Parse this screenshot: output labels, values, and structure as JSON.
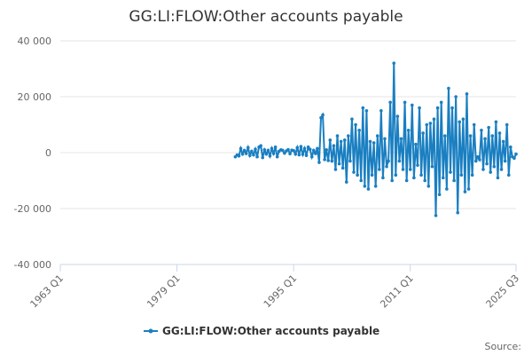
{
  "chart_data": {
    "type": "line",
    "title": "GG:LI:FLOW:Other accounts payable",
    "categories": [
      "1963 Q1",
      null,
      null,
      null,
      null,
      null,
      null,
      null,
      null,
      null,
      null,
      null,
      null,
      null,
      null,
      null,
      null,
      null,
      null,
      null,
      null,
      null,
      null,
      null,
      null,
      null,
      null,
      null,
      null,
      null,
      null,
      null,
      null,
      null,
      null,
      null,
      null,
      null,
      null,
      null,
      null,
      null,
      null,
      null,
      null,
      null,
      null,
      null,
      null,
      null,
      null,
      null,
      null,
      null,
      null,
      null,
      null,
      null,
      null,
      null,
      null,
      null,
      null,
      null,
      "1979 Q1",
      null,
      null,
      null,
      null,
      null,
      null,
      null,
      null,
      null,
      null,
      null,
      null,
      null,
      null,
      null,
      null,
      null,
      null,
      null,
      null,
      null,
      null,
      null,
      null,
      null,
      null,
      null,
      null,
      null,
      null,
      null,
      null,
      null,
      null,
      null,
      null,
      null,
      null,
      null,
      null,
      null,
      null,
      null,
      null,
      null,
      null,
      null,
      null,
      null,
      null,
      null,
      null,
      null,
      null,
      null,
      null,
      null,
      null,
      null,
      null,
      null,
      null,
      null,
      "1995 Q1",
      null,
      null,
      null,
      null,
      null,
      null,
      null,
      null,
      null,
      null,
      null,
      null,
      null,
      null,
      null,
      null,
      null,
      null,
      null,
      null,
      null,
      null,
      null,
      null,
      null,
      null,
      null,
      null,
      null,
      null,
      null,
      null,
      null,
      null,
      null,
      null,
      null,
      null,
      null,
      null,
      null,
      null,
      null,
      null,
      null,
      null,
      null,
      null,
      null,
      null,
      null,
      null,
      null,
      null,
      null,
      null,
      null,
      null,
      null,
      null,
      null,
      null,
      null,
      "2011 Q1",
      null,
      null,
      null,
      null,
      null,
      null,
      null,
      null,
      null,
      null,
      null,
      null,
      null,
      null,
      null,
      null,
      null,
      null,
      null,
      null,
      null,
      null,
      null,
      null,
      null,
      null,
      null,
      null,
      null,
      null,
      null,
      null,
      null,
      null,
      null,
      null,
      null,
      null,
      null,
      null,
      null,
      null,
      null,
      null,
      null,
      null,
      null,
      null,
      null,
      null,
      null,
      null,
      null,
      null,
      null,
      null,
      null,
      "2025 Q3"
    ],
    "series": [
      {
        "name": "GG:LI:FLOW:Other accounts payable",
        "color": "#1a7fc1",
        "values": [
          null,
          null,
          null,
          null,
          null,
          null,
          null,
          null,
          null,
          null,
          null,
          null,
          null,
          null,
          null,
          null,
          null,
          null,
          null,
          null,
          null,
          null,
          null,
          null,
          null,
          null,
          null,
          null,
          null,
          null,
          null,
          null,
          null,
          null,
          null,
          null,
          null,
          null,
          null,
          null,
          null,
          null,
          null,
          null,
          null,
          null,
          null,
          null,
          null,
          null,
          null,
          null,
          null,
          null,
          null,
          null,
          null,
          null,
          null,
          null,
          null,
          null,
          null,
          null,
          null,
          null,
          null,
          null,
          null,
          null,
          null,
          null,
          null,
          null,
          null,
          null,
          null,
          null,
          null,
          null,
          null,
          null,
          null,
          null,
          null,
          null,
          null,
          null,
          null,
          null,
          null,
          null,
          null,
          null,
          null,
          null,
          -1500,
          -800,
          -1200,
          1500,
          -500,
          800,
          -300,
          1800,
          -1000,
          500,
          -800,
          1200,
          -1500,
          2000,
          2500,
          -1800,
          1000,
          -500,
          800,
          -1200,
          1500,
          -300,
          2000,
          -1500,
          500,
          1000,
          800,
          -200,
          600,
          1100,
          -400,
          900,
          700,
          -500,
          1800,
          -800,
          2200,
          -600,
          1500,
          -1000,
          2000,
          1200,
          -1500,
          800,
          -300,
          1500,
          -3500,
          12500,
          13500,
          -2500,
          1000,
          -2800,
          4500,
          -3000,
          2500,
          -6000,
          6000,
          -4000,
          4000,
          -5500,
          4500,
          -10500,
          6000,
          -3000,
          12000,
          -7000,
          10000,
          -8000,
          8000,
          -10000,
          16000,
          -12000,
          15000,
          -13000,
          4000,
          -8000,
          3500,
          -12000,
          6000,
          -6000,
          15000,
          -9000,
          5000,
          -5000,
          -3000,
          18000,
          -10000,
          32000,
          -8000,
          13000,
          -3000,
          5000,
          -6000,
          18000,
          -10000,
          8000,
          -6000,
          17000,
          -9000,
          3000,
          -4500,
          16000,
          -8000,
          7000,
          -10000,
          10000,
          -12000,
          10500,
          -5000,
          12000,
          -22500,
          16000,
          -15000,
          18000,
          -9000,
          6000,
          -13000,
          23000,
          -7000,
          16000,
          -10000,
          20000,
          -21500,
          11000,
          -8000,
          12000,
          -14000,
          21000,
          -13000,
          6000,
          -8000,
          10000,
          -3000,
          -1500,
          -2500,
          8000,
          -6000,
          5000,
          -4000,
          9000,
          -7000,
          6000,
          -5000,
          11000,
          -9000,
          7000,
          -6000,
          4000,
          -3000,
          10000,
          -8000,
          2000,
          -1500,
          -2000,
          -500
        ]
      }
    ],
    "ylim": [
      -40000,
      40000
    ],
    "yticks": [
      {
        "value": -40000,
        "label": "-40 000"
      },
      {
        "value": -20000,
        "label": "-20 000"
      },
      0,
      {
        "value": 20000,
        "label": "20 000"
      },
      {
        "value": 40000,
        "label": "40 000"
      }
    ],
    "grid": true,
    "legend": "bottom",
    "source": "Source:"
  }
}
